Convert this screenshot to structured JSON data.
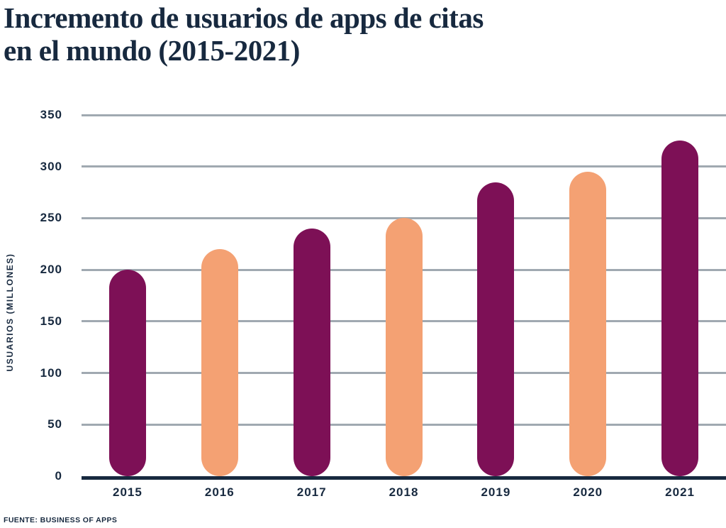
{
  "title": {
    "line1": "Incremento de usuarios de apps de citas",
    "line2": "en el mundo (2015-2021)"
  },
  "y_axis_title": "USUARIOS (MILLONES)",
  "source": "FUENTE: BUSINESS OF APPS",
  "colors": {
    "navy": "#17293F",
    "magenta": "#7D1056",
    "peach": "#F4A173",
    "gridline": "#A0A9B1",
    "background": "#FFFFFF"
  },
  "chart_data": {
    "type": "bar",
    "title": "Incremento de usuarios de apps de citas en el mundo (2015-2021)",
    "categories": [
      "2015",
      "2016",
      "2017",
      "2018",
      "2019",
      "2020",
      "2021"
    ],
    "values": [
      200,
      220,
      240,
      250,
      285,
      295,
      325
    ],
    "bar_colors": [
      "#7D1056",
      "#F4A173",
      "#7D1056",
      "#F4A173",
      "#7D1056",
      "#F4A173",
      "#7D1056"
    ],
    "xlabel": "",
    "ylabel": "USUARIOS (MILLONES)",
    "ylim": [
      0,
      350
    ],
    "yticks": [
      0,
      50,
      100,
      150,
      200,
      250,
      300,
      350
    ],
    "grid": true,
    "legend": false,
    "bar_shape": "rounded-pill",
    "source": "FUENTE: BUSINESS OF APPS"
  }
}
